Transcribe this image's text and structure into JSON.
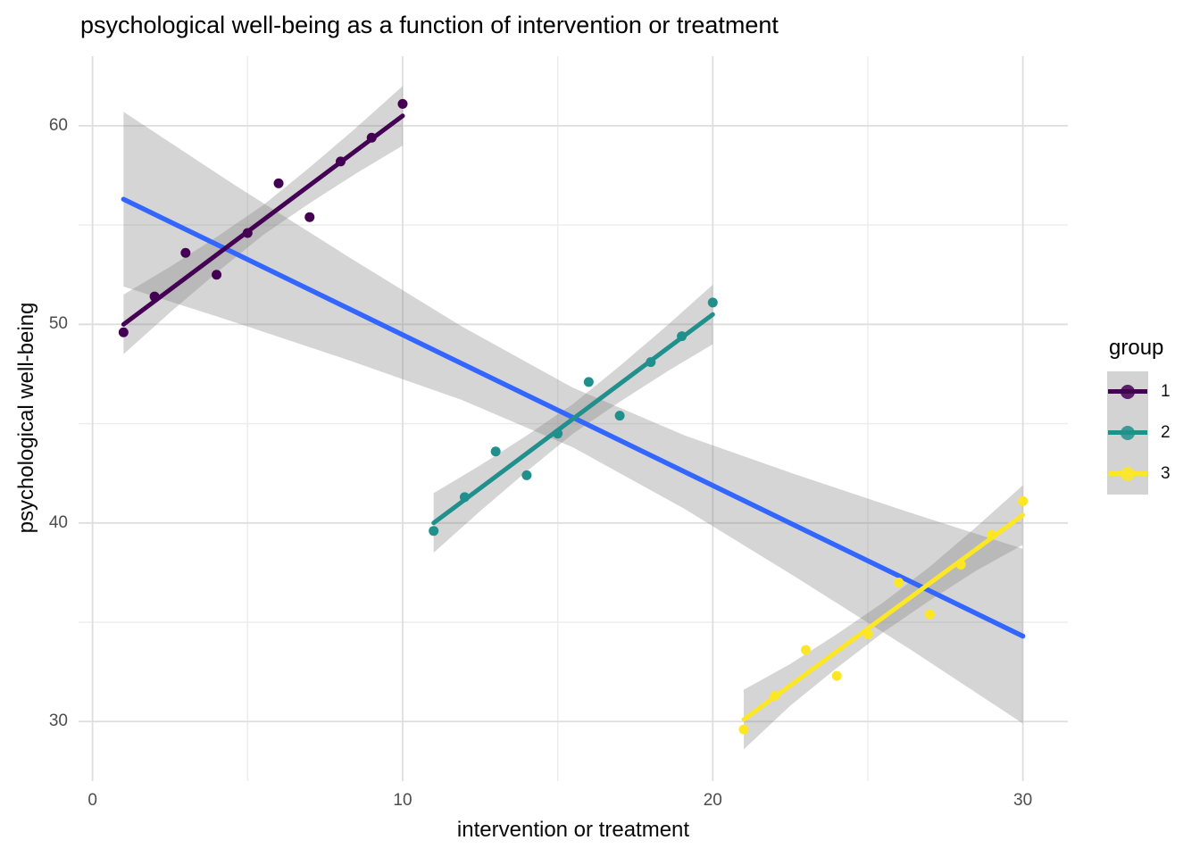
{
  "chart_data": {
    "type": "scatter",
    "title": "psychological well-being as a function of intervention or treatment",
    "xlabel": "intervention or treatment",
    "ylabel": "psychological well-being",
    "xlim": [
      -0.45,
      31.45
    ],
    "ylim": [
      27.0,
      63.5
    ],
    "x_ticks": [
      0,
      10,
      20,
      30
    ],
    "x_minor_ticks": [
      5,
      15,
      25
    ],
    "y_ticks": [
      30,
      40,
      50,
      60
    ],
    "y_minor_ticks": [
      35,
      45,
      55
    ],
    "grid": {
      "major_color": "#DEDEDE",
      "minor_color": "#ECECEC",
      "on": true
    },
    "band": {
      "color": "#7F7F7F",
      "opacity": 0.33
    },
    "overall_fit": {
      "name": "overall",
      "color": "#3366FF",
      "line": {
        "x": [
          1,
          30
        ],
        "y": [
          56.3,
          34.3
        ]
      },
      "band": [
        [
          1,
          51.9,
          60.7
        ],
        [
          4.6,
          50.1,
          57.0
        ],
        [
          8.25,
          48.2,
          53.4
        ],
        [
          11.9,
          46.2,
          49.9
        ],
        [
          15.5,
          43.8,
          46.8
        ],
        [
          19.1,
          40.7,
          44.4
        ],
        [
          22.75,
          37.2,
          42.4
        ],
        [
          26.4,
          33.6,
          40.5
        ],
        [
          30,
          29.9,
          38.7
        ]
      ]
    },
    "series": [
      {
        "name": "1",
        "color": "#440154",
        "x": [
          1,
          2,
          3,
          4,
          5,
          6,
          7,
          8,
          9,
          10
        ],
        "y": [
          49.6,
          51.4,
          53.6,
          52.5,
          54.6,
          57.1,
          55.4,
          58.2,
          59.4,
          61.1
        ],
        "line": {
          "x": [
            1,
            10
          ],
          "y": [
            50.0,
            60.5
          ]
        },
        "band": [
          [
            1,
            48.5,
            51.5
          ],
          [
            2.5,
            50.6,
            52.9
          ],
          [
            4,
            52.6,
            54.4
          ],
          [
            5.5,
            54.5,
            56.0
          ],
          [
            7,
            56.1,
            57.9
          ],
          [
            8.5,
            57.6,
            59.9
          ],
          [
            10,
            59.0,
            62.0
          ]
        ]
      },
      {
        "name": "2",
        "color": "#21908C",
        "x": [
          11,
          12,
          13,
          14,
          15,
          16,
          17,
          18,
          19,
          20
        ],
        "y": [
          39.6,
          41.3,
          43.6,
          42.4,
          44.5,
          47.1,
          45.4,
          48.1,
          49.4,
          51.1
        ],
        "line": {
          "x": [
            11,
            20
          ],
          "y": [
            40.0,
            50.5
          ]
        },
        "band": [
          [
            11,
            38.5,
            41.5
          ],
          [
            12.5,
            40.6,
            42.9
          ],
          [
            14,
            42.6,
            44.4
          ],
          [
            15.5,
            44.5,
            46.0
          ],
          [
            17,
            46.1,
            47.9
          ],
          [
            18.5,
            47.6,
            49.9
          ],
          [
            20,
            49.0,
            52.0
          ]
        ]
      },
      {
        "name": "3",
        "color": "#FDE725",
        "x": [
          21,
          22,
          23,
          24,
          25,
          26,
          27,
          28,
          29,
          30
        ],
        "y": [
          29.6,
          31.3,
          33.6,
          32.3,
          34.4,
          37.0,
          35.4,
          37.9,
          39.4,
          41.1
        ],
        "line": {
          "x": [
            21,
            30
          ],
          "y": [
            30.1,
            40.4
          ]
        },
        "band": [
          [
            21,
            28.6,
            31.6
          ],
          [
            22.5,
            30.8,
            32.9
          ],
          [
            24,
            32.7,
            34.4
          ],
          [
            25.5,
            34.5,
            36.0
          ],
          [
            27,
            36.1,
            37.8
          ],
          [
            28.5,
            37.6,
            39.8
          ],
          [
            30,
            38.9,
            41.9
          ]
        ]
      }
    ],
    "legend": {
      "title": "group",
      "position": "right",
      "key_bg": "#D3D3D3",
      "items": [
        {
          "label": "1",
          "color": "#440154"
        },
        {
          "label": "2",
          "color": "#21908C"
        },
        {
          "label": "3",
          "color": "#FDE725"
        }
      ]
    },
    "text": {
      "tick_color": "#4D4D4D",
      "title_color": "#000000"
    }
  }
}
